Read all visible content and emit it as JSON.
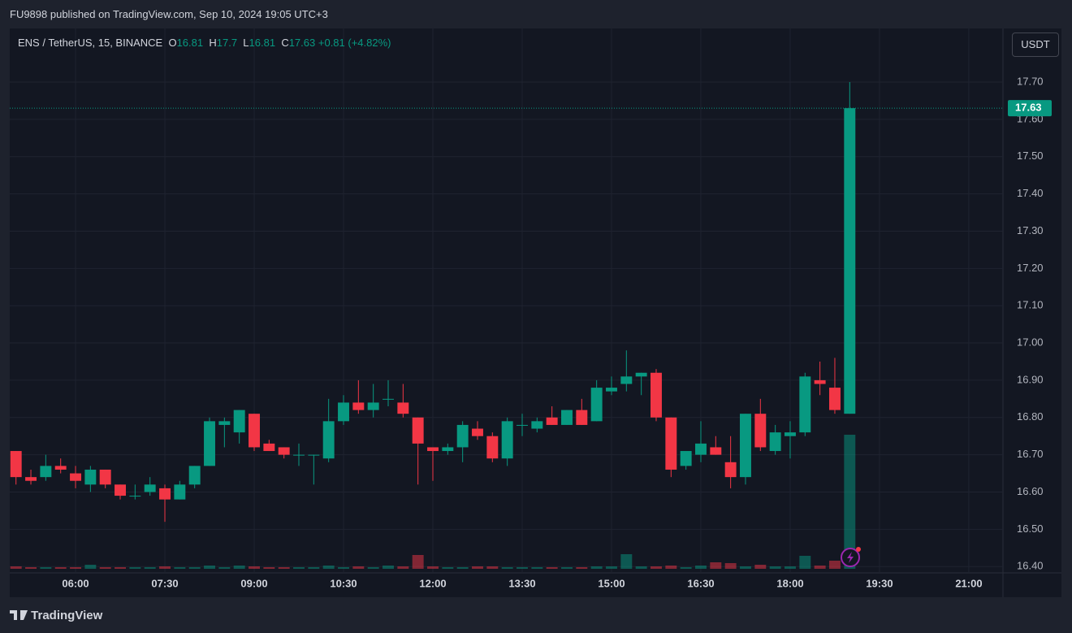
{
  "header": {
    "title": "FU9898 published on TradingView.com, Sep 10, 2024 19:05 UTC+3"
  },
  "legend": {
    "symbol": "ENS / TetherUS, 15, BINANCE",
    "o_label": "O",
    "o": 16.81,
    "h_label": "H",
    "h": 17.7,
    "l_label": "L",
    "l": 16.81,
    "c_label": "C",
    "c": 17.63,
    "change": "+0.81 (+4.82%)"
  },
  "currency_button": "USDT",
  "footer": {
    "brand": "TradingView"
  },
  "chart_data": {
    "type": "candlestick",
    "x": [
      300,
      315,
      330,
      345,
      360,
      375,
      390,
      405,
      420,
      435,
      450,
      465,
      480,
      495,
      510,
      525,
      540,
      555,
      570,
      585,
      600,
      615,
      630,
      645,
      660,
      675,
      690,
      705,
      720,
      735,
      750,
      765,
      780,
      795,
      810,
      825,
      840,
      855,
      870,
      885,
      900,
      915,
      930,
      945,
      960,
      975,
      990,
      1005,
      1020,
      1035,
      1050,
      1065,
      1080,
      1095,
      1110,
      1125,
      1140
    ],
    "open": [
      16.71,
      16.64,
      16.64,
      16.67,
      16.65,
      16.62,
      16.66,
      16.62,
      16.59,
      16.6,
      16.61,
      16.58,
      16.62,
      16.67,
      16.78,
      16.76,
      16.81,
      16.73,
      16.72,
      16.7,
      16.7,
      16.69,
      16.79,
      16.84,
      16.82,
      16.85,
      16.84,
      16.8,
      16.72,
      16.71,
      16.72,
      16.77,
      16.75,
      16.69,
      16.78,
      16.77,
      16.8,
      16.78,
      16.82,
      16.79,
      16.87,
      16.89,
      16.91,
      16.92,
      16.8,
      16.67,
      16.7,
      16.72,
      16.68,
      16.64,
      16.81,
      16.71,
      16.75,
      16.76,
      16.9,
      16.88,
      16.81
    ],
    "high": [
      16.71,
      16.66,
      16.7,
      16.69,
      16.67,
      16.67,
      16.66,
      16.62,
      16.62,
      16.64,
      16.62,
      16.63,
      16.67,
      16.8,
      16.8,
      16.82,
      16.81,
      16.74,
      16.72,
      16.73,
      16.7,
      16.85,
      16.86,
      16.9,
      16.89,
      16.9,
      16.89,
      16.8,
      16.72,
      16.73,
      16.79,
      16.79,
      16.76,
      16.8,
      16.81,
      16.8,
      16.83,
      16.82,
      16.85,
      16.9,
      16.91,
      16.98,
      16.92,
      16.93,
      16.8,
      16.7,
      16.79,
      16.75,
      16.75,
      16.81,
      16.85,
      16.78,
      16.79,
      16.92,
      16.95,
      16.96,
      17.7
    ],
    "low": [
      16.62,
      16.62,
      16.63,
      16.65,
      16.61,
      16.6,
      16.61,
      16.58,
      16.58,
      16.59,
      16.52,
      16.58,
      16.61,
      16.67,
      16.72,
      16.73,
      16.71,
      16.71,
      16.69,
      16.67,
      16.62,
      16.68,
      16.78,
      16.81,
      16.8,
      16.83,
      16.8,
      16.62,
      16.63,
      16.7,
      16.68,
      16.74,
      16.68,
      16.67,
      16.75,
      16.76,
      16.78,
      16.78,
      16.78,
      16.79,
      16.86,
      16.87,
      16.86,
      16.79,
      16.64,
      16.66,
      16.68,
      16.7,
      16.61,
      16.62,
      16.71,
      16.7,
      16.69,
      16.75,
      16.86,
      16.81,
      16.81
    ],
    "close": [
      16.64,
      16.63,
      16.67,
      16.66,
      16.63,
      16.66,
      16.62,
      16.59,
      16.59,
      16.62,
      16.58,
      16.62,
      16.67,
      16.79,
      16.79,
      16.82,
      16.72,
      16.71,
      16.7,
      16.7,
      16.7,
      16.79,
      16.84,
      16.82,
      16.84,
      16.85,
      16.81,
      16.73,
      16.71,
      16.72,
      16.78,
      16.75,
      16.69,
      16.79,
      16.78,
      16.79,
      16.78,
      16.82,
      16.78,
      16.88,
      16.88,
      16.91,
      16.92,
      16.8,
      16.66,
      16.71,
      16.73,
      16.7,
      16.64,
      16.81,
      16.72,
      16.76,
      16.76,
      16.91,
      16.89,
      16.82,
      17.63
    ],
    "volume": [
      3,
      2,
      2,
      2,
      2,
      5,
      2,
      2,
      2,
      2,
      3,
      2,
      2,
      4,
      2,
      4,
      3,
      2,
      2,
      2,
      2,
      4,
      2,
      3,
      2,
      4,
      3,
      17,
      3,
      2,
      2,
      3,
      3,
      2,
      2,
      2,
      2,
      2,
      2,
      3,
      3,
      18,
      3,
      3,
      4,
      2,
      4,
      8,
      7,
      3,
      5,
      3,
      3,
      16,
      4,
      10,
      165
    ],
    "up_color": "#089981",
    "down_color": "#f23645",
    "xlim": [
      293.7,
      1294.4
    ],
    "xticks": [
      {
        "value": 360,
        "label": "06:00"
      },
      {
        "value": 450,
        "label": "07:30"
      },
      {
        "value": 540,
        "label": "09:00"
      },
      {
        "value": 630,
        "label": "10:30"
      },
      {
        "value": 720,
        "label": "12:00"
      },
      {
        "value": 810,
        "label": "13:30"
      },
      {
        "value": 900,
        "label": "15:00"
      },
      {
        "value": 990,
        "label": "16:30"
      },
      {
        "value": 1080,
        "label": "18:00"
      },
      {
        "value": 1170,
        "label": "19:30"
      },
      {
        "value": 1260,
        "label": "21:00"
      }
    ],
    "ylim": [
      16.383,
      17.844
    ],
    "yticks": [
      {
        "value": 16.4,
        "label": "16.40"
      },
      {
        "value": 16.5,
        "label": "16.50"
      },
      {
        "value": 16.6,
        "label": "16.60"
      },
      {
        "value": 16.7,
        "label": "16.70"
      },
      {
        "value": 16.8,
        "label": "16.80"
      },
      {
        "value": 16.9,
        "label": "16.90"
      },
      {
        "value": 17.0,
        "label": "17.00"
      },
      {
        "value": 17.1,
        "label": "17.10"
      },
      {
        "value": 17.2,
        "label": "17.20"
      },
      {
        "value": 17.3,
        "label": "17.30"
      },
      {
        "value": 17.4,
        "label": "17.40"
      },
      {
        "value": 17.5,
        "label": "17.50"
      },
      {
        "value": 17.6,
        "label": "17.60"
      },
      {
        "value": 17.7,
        "label": "17.70"
      }
    ],
    "grid": true
  }
}
